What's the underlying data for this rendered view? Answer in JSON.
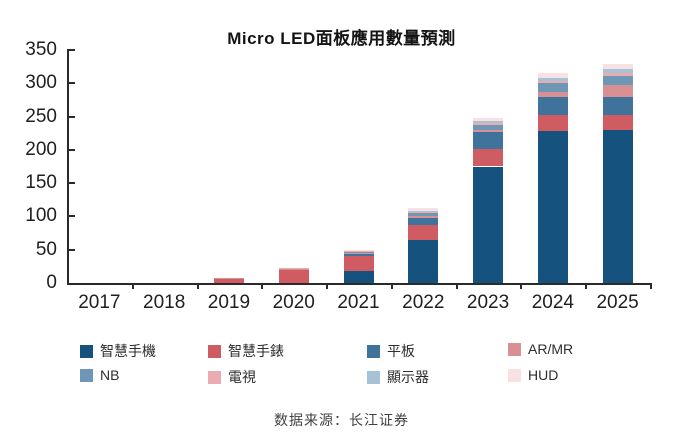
{
  "page": {
    "background": "#ffffff"
  },
  "header": {
    "title": "Micro LED面板應用數量預測"
  },
  "footer": {
    "source_note": "数据来源：长江证券"
  },
  "chart_data": {
    "type": "bar",
    "stacked": true,
    "title": "Micro LED面板應用數量預測",
    "xlabel": "",
    "ylabel": "",
    "ylim": [
      0,
      350
    ],
    "yticks": [
      0,
      50,
      100,
      150,
      200,
      250,
      300,
      350
    ],
    "grid": false,
    "legend_position": "bottom",
    "axis_color": "#2a2a2a",
    "categories": [
      "2017",
      "2018",
      "2019",
      "2020",
      "2021",
      "2022",
      "2023",
      "2024",
      "2025"
    ],
    "series": [
      {
        "name": "智慧手機",
        "color": "#15527e",
        "values": [
          0,
          0,
          0,
          0,
          18,
          65,
          175,
          228,
          230
        ]
      },
      {
        "name": "智慧手錶",
        "color": "#d05c63",
        "values": [
          0,
          0,
          7,
          20,
          22,
          22,
          27,
          25,
          23
        ]
      },
      {
        "name": "平板",
        "color": "#3f739b",
        "values": [
          0,
          0,
          0,
          0,
          3,
          11,
          25,
          27,
          27
        ]
      },
      {
        "name": "AR/MR",
        "color": "#d99095",
        "values": [
          0,
          0,
          1,
          1,
          3,
          3,
          3,
          7,
          17
        ]
      },
      {
        "name": "NB",
        "color": "#6d97b5",
        "values": [
          0,
          0,
          0,
          0,
          1,
          4,
          8,
          14,
          14
        ]
      },
      {
        "name": "電視",
        "color": "#eaacb0",
        "values": [
          0,
          0,
          0,
          1,
          1,
          2,
          3,
          3,
          4
        ]
      },
      {
        "name": "顯示器",
        "color": "#a6c3d6",
        "values": [
          0,
          0,
          0,
          0,
          1,
          1,
          2,
          4,
          6
        ]
      },
      {
        "name": "HUD",
        "color": "#f8e1e3",
        "values": [
          0,
          0,
          0,
          0,
          1,
          4,
          5,
          7,
          8
        ]
      }
    ],
    "totals_by_year": [
      0,
      0,
      8,
      22,
      50,
      112,
      248,
      315,
      329
    ]
  }
}
